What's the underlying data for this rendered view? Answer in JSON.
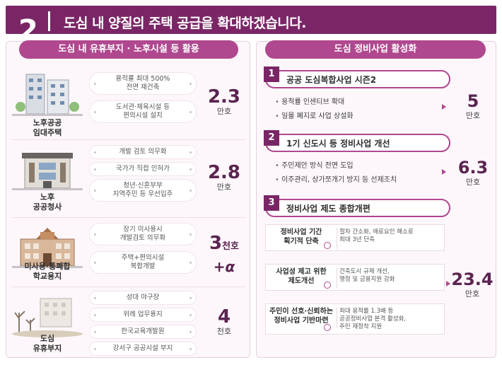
{
  "header": {
    "number": "2",
    "title": "도심 내 양질의 주택 공급을 확대하겠습니다."
  },
  "left": {
    "title": "도심 내 유휴부지 · 노후시설 등 활용",
    "rows": [
      {
        "label_lines": [
          "노후공공",
          "임대주택"
        ],
        "pills": [
          [
            "용적률 최대 500%",
            "전면 재건축"
          ],
          [
            "도서관·체육시설 등",
            "편의시설 설치"
          ]
        ],
        "value": "2.3",
        "unit": "만호"
      },
      {
        "label_lines": [
          "노후",
          "공공청사"
        ],
        "pills": [
          [
            "개발 검토 의무화"
          ],
          [
            "국가가 직접 인허가"
          ],
          [
            "청년·신혼부부",
            "지역주민 등 우선입주"
          ]
        ],
        "value": "2.8",
        "unit": "만호"
      },
      {
        "label_lines": [
          "미사용·통폐합",
          "학교용지"
        ],
        "pills": [
          [
            "장기 미사용시",
            "개발검토 의무화"
          ],
          [
            "주택+편의시설",
            "복합개발"
          ]
        ],
        "value": "3",
        "value_suffix": "천호",
        "value_extra": "+α"
      },
      {
        "label_lines": [
          "도심",
          "유휴부지"
        ],
        "pills": [
          [
            "성대 야구장"
          ],
          [
            "위례 업무용지"
          ],
          [
            "한국교육개발원"
          ],
          [
            "강서구 공공시설 부지"
          ]
        ],
        "value": "4",
        "unit": "천호"
      }
    ]
  },
  "right": {
    "title": "도심 정비사업 활성화",
    "sections": [
      {
        "num": "1",
        "title": "공공 도심복합사업 시즌2",
        "bullets": [
          "용적률 인센티브 확대",
          "일몰 폐지로 사업 상설화"
        ],
        "value": "5",
        "unit": "만호"
      },
      {
        "num": "2",
        "title": "1기 신도시 등 정비사업 개선",
        "bullets": [
          "주민제안 방식 전면 도입",
          "이주관리, 상가쪼개기 방지 등 선제조치"
        ],
        "value": "6.3",
        "unit": "만호"
      },
      {
        "num": "3",
        "title": "정비사업 제도 종합개편",
        "value": "23.4",
        "unit": "만호",
        "subs": [
          {
            "title_lines": [
              "정비사업 기간",
              "획기적 단축"
            ],
            "desc_lines": [
              "절차 간소화, 애로요인 해소로",
              "최대 3년 단축"
            ]
          },
          {
            "title_lines": [
              "사업성 제고 위한",
              "제도개선"
            ],
            "desc_lines": [
              "건축도시 규제 개선,",
              "행정 및 금융지원 강화"
            ]
          },
          {
            "title_lines": [
              "주민이 선호·신뢰하는",
              "정비사업 기반마련"
            ],
            "desc_lines": [
              "최대 용적률 1.3배 등",
              "공공정비사업 본격 활성화,",
              "주민 재정착 지원"
            ]
          }
        ]
      }
    ]
  },
  "colors": {
    "header_bg": "#7a2666",
    "accent": "#b0488f",
    "number": "#5a2450"
  },
  "icons": [
    "old-apartment-illustration",
    "government-building-illustration",
    "school-building-illustration",
    "vacant-land-illustration",
    "clock-icon",
    "power-icon",
    "person-icon"
  ]
}
